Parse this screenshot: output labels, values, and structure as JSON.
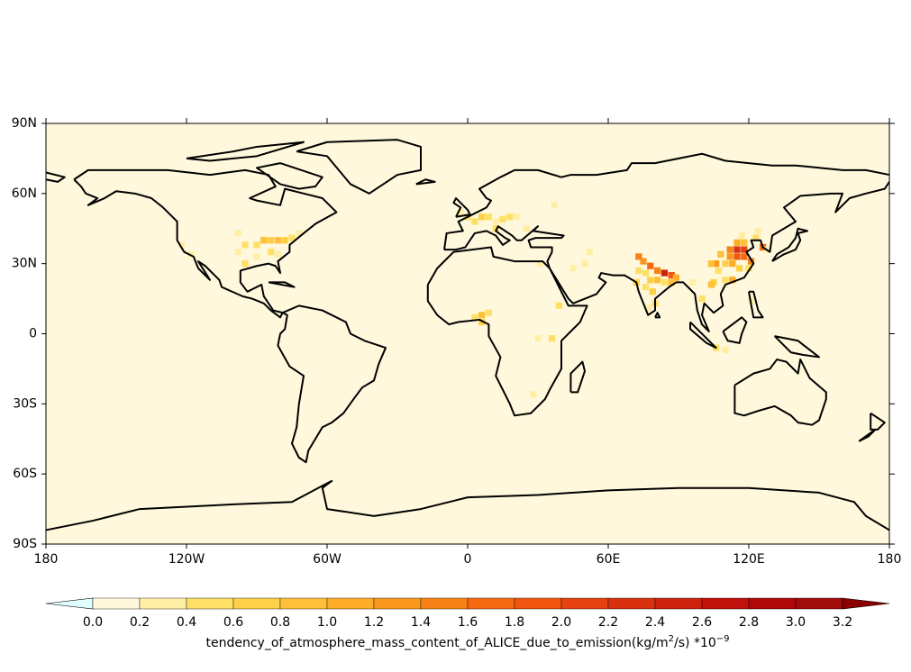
{
  "chart_data": {
    "type": "map",
    "xlim": [
      -180,
      180
    ],
    "ylim": [
      -90,
      90
    ],
    "xticks": [
      {
        "value": -180,
        "label": "180"
      },
      {
        "value": -120,
        "label": "120W"
      },
      {
        "value": -60,
        "label": "60W"
      },
      0,
      {
        "value": 60,
        "label": "60E"
      },
      {
        "value": 120,
        "label": "120E"
      },
      {
        "value": 180,
        "label": "180"
      }
    ],
    "yticks": [
      {
        "value": 90,
        "label": "90N"
      },
      {
        "value": 60,
        "label": "60N"
      },
      {
        "value": 30,
        "label": "30N"
      },
      0,
      {
        "value": -30,
        "label": "30S"
      },
      {
        "value": -60,
        "label": "60S"
      },
      {
        "value": -90,
        "label": "90S"
      }
    ],
    "background_color": "#fff8dc",
    "cells": [
      [
        115,
        36,
        2.3
      ],
      [
        118,
        36,
        2.1
      ],
      [
        115,
        33,
        1.9
      ],
      [
        118,
        33,
        1.6
      ],
      [
        112,
        36,
        1.5
      ],
      [
        112,
        33,
        1.3
      ],
      [
        115,
        39,
        1.1
      ],
      [
        118,
        39,
        0.9
      ],
      [
        121,
        31,
        1.5
      ],
      [
        113,
        30,
        1.0
      ],
      [
        110,
        30,
        0.7
      ],
      [
        106,
        30,
        1.2
      ],
      [
        104,
        30,
        0.8
      ],
      [
        113,
        23,
        1.1
      ],
      [
        110,
        23,
        0.5
      ],
      [
        116,
        28,
        0.6
      ],
      [
        120,
        28,
        0.5
      ],
      [
        107,
        27,
        0.5
      ],
      [
        117,
        42,
        0.3
      ],
      [
        123,
        41,
        0.4
      ],
      [
        126,
        37,
        1.7
      ],
      [
        128,
        36,
        0.3
      ],
      [
        124,
        44,
        0.3
      ],
      [
        108,
        34,
        0.8
      ],
      [
        105,
        22,
        0.6
      ],
      [
        104,
        21,
        0.9
      ],
      [
        84,
        26,
        2.5
      ],
      [
        87,
        25,
        1.8
      ],
      [
        81,
        27,
        1.5
      ],
      [
        78,
        29,
        1.6
      ],
      [
        75,
        31,
        1.2
      ],
      [
        73,
        33,
        1.5
      ],
      [
        89,
        24,
        1.0
      ],
      [
        78,
        23,
        0.7
      ],
      [
        81,
        23,
        0.8
      ],
      [
        76,
        26,
        0.5
      ],
      [
        73,
        27,
        0.4
      ],
      [
        84,
        22,
        0.5
      ],
      [
        76,
        20,
        0.4
      ],
      [
        79,
        18,
        0.6
      ],
      [
        80,
        13,
        0.4
      ],
      [
        77,
        11,
        0.3
      ],
      [
        72,
        22,
        0.6
      ],
      [
        87,
        22,
        0.9
      ],
      [
        96,
        22,
        0.3
      ],
      [
        100,
        15,
        0.4
      ],
      [
        -87,
        40,
        0.9
      ],
      [
        -84,
        40,
        0.7
      ],
      [
        -81,
        40,
        0.8
      ],
      [
        -78,
        40,
        0.6
      ],
      [
        -75,
        41,
        0.5
      ],
      [
        -90,
        38,
        0.5
      ],
      [
        -95,
        38,
        0.4
      ],
      [
        -98,
        35,
        0.3
      ],
      [
        -84,
        35,
        0.4
      ],
      [
        -81,
        34,
        0.3
      ],
      [
        -90,
        33,
        0.3
      ],
      [
        -95,
        30,
        0.4
      ],
      [
        -118,
        34,
        0.3
      ],
      [
        -122,
        38,
        0.2
      ],
      [
        -98,
        43,
        0.2
      ],
      [
        -72,
        43,
        0.3
      ],
      [
        0,
        50,
        0.4
      ],
      [
        3,
        48,
        0.5
      ],
      [
        6,
        50,
        0.6
      ],
      [
        9,
        50,
        0.4
      ],
      [
        12,
        48,
        0.3
      ],
      [
        15,
        49,
        0.4
      ],
      [
        18,
        50,
        0.4
      ],
      [
        21,
        50,
        0.3
      ],
      [
        12,
        45,
        0.4
      ],
      [
        -3,
        52,
        0.3
      ],
      [
        37,
        55,
        0.2
      ],
      [
        25,
        45,
        0.2
      ],
      [
        6,
        8,
        0.9
      ],
      [
        9,
        9,
        0.5
      ],
      [
        3,
        7,
        0.4
      ],
      [
        6,
        5,
        0.7
      ],
      [
        39,
        12,
        0.4
      ],
      [
        36,
        -2,
        0.4
      ],
      [
        30,
        -2,
        0.2
      ],
      [
        28,
        -26,
        0.3
      ],
      [
        31,
        30,
        0.3
      ],
      [
        45,
        28,
        0.3
      ],
      [
        50,
        30,
        0.3
      ],
      [
        52,
        35,
        0.2
      ],
      [
        106,
        -6,
        0.4
      ],
      [
        110,
        -7,
        0.3
      ],
      [
        121,
        14,
        0.3
      ]
    ],
    "cell_size": 2.8,
    "colorbar": {
      "levels": [
        {
          "value": 0,
          "label": "0.0"
        },
        0.2,
        0.4,
        0.6,
        0.8,
        {
          "value": 1,
          "label": "1.0"
        },
        1.2,
        1.4,
        1.6,
        1.8,
        {
          "value": 2,
          "label": "2.0"
        },
        2.2,
        2.4,
        2.6,
        2.8,
        {
          "value": 3,
          "label": "3.0"
        },
        3.2
      ],
      "colors": [
        "#fff8dc",
        "#ffefa6",
        "#ffe066",
        "#fed04a",
        "#fec039",
        "#fdad2a",
        "#f9981d",
        "#f88216",
        "#f56a11",
        "#f05610",
        "#e64110",
        "#d9310f",
        "#cd220c",
        "#c0120b",
        "#b0080b",
        "#a00b0b"
      ],
      "under_color": "#e0ffff",
      "over_color": "#8b0000",
      "label_parts": [
        "tendency_of_atmosphere_mass_content_of_ALICE_due_to_emission(kg/m",
        "2",
        "/s) *10",
        "−9"
      ]
    }
  }
}
